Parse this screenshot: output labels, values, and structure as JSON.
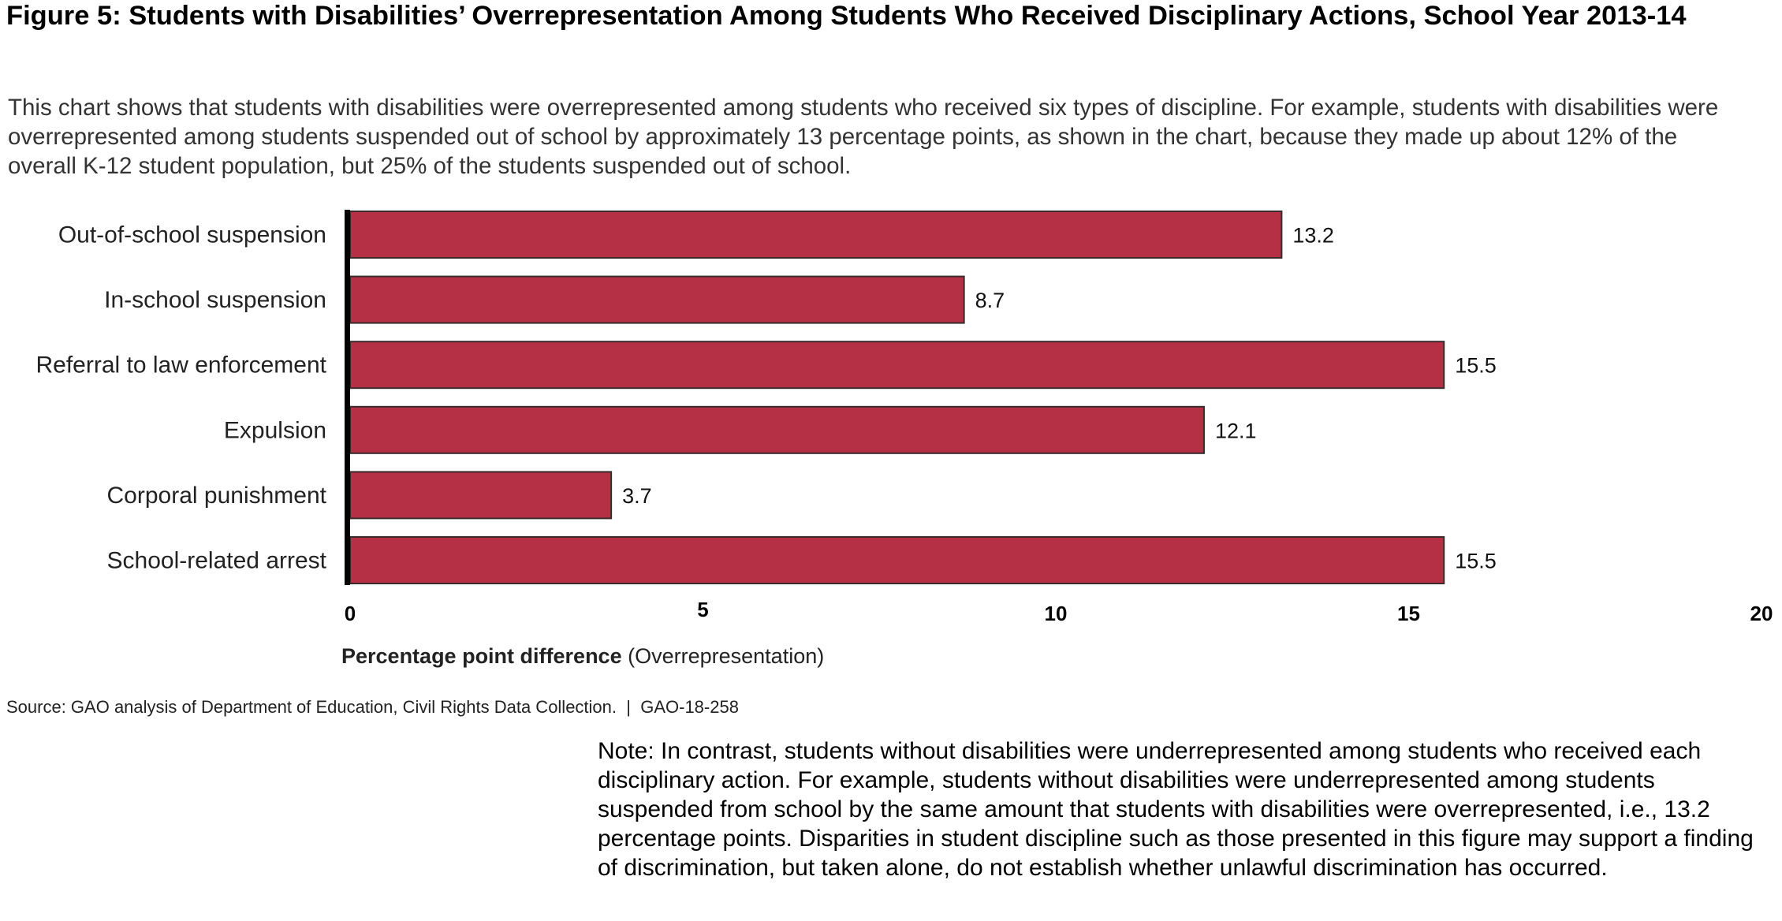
{
  "figure": {
    "title": "Figure 5: Students with Disabilities’ Overrepresentation Among Students Who Received Disciplinary Actions, School Year 2013-14",
    "description": "This chart shows that students with disabilities were overrepresented among students who received six types of discipline. For example, students with disabilities were overrepresented among students suspended out of school by approximately 13 percentage points, as shown in the chart, because they made up about 12% of the overall K-12 student population, but 25% of the students suspended out of school.",
    "source": "Source: GAO analysis of Department of Education, Civil Rights Data Collection.",
    "source_separator": "|",
    "report_id": "GAO-18-258",
    "note": "Note: In contrast, students without disabilities were underrepresented among students who received each disciplinary action. For example, students without disabilities were underrepresented among students suspended from school by the same amount that students with disabilities were overrepresented, i.e., 13.2 percentage points. Disparities in student discipline such as those presented in this figure may support a finding of discrimination, but taken alone, do not establish whether unlawful discrimination has occurred."
  },
  "chart_data": {
    "type": "bar",
    "orientation": "horizontal",
    "title": "Figure 5: Students with Disabilities’ Overrepresentation Among Students Who Received Disciplinary Actions, School Year 2013-14",
    "categories": [
      "Out-of-school suspension",
      "In-school suspension",
      "Referral to law enforcement",
      "Expulsion",
      "Corporal punishment",
      "School-related arrest"
    ],
    "values": [
      13.2,
      8.7,
      15.5,
      12.1,
      3.7,
      15.5
    ],
    "value_labels": [
      "13.2",
      "8.7",
      "15.5",
      "12.1",
      "3.7",
      "15.5"
    ],
    "xlabel_bold": "Percentage point difference",
    "xlabel_rest": "(Overrepresentation)",
    "ylabel": "",
    "xlim": [
      0,
      20
    ],
    "xticks": [
      0,
      5,
      10,
      15,
      20
    ],
    "xtick_labels": [
      "0",
      "5",
      "10",
      "15",
      "20"
    ],
    "grid": false,
    "legend": "none",
    "colors": {
      "bar": "#b53044",
      "bar_edge": "#3a2a2c",
      "axis": "#000000"
    }
  }
}
